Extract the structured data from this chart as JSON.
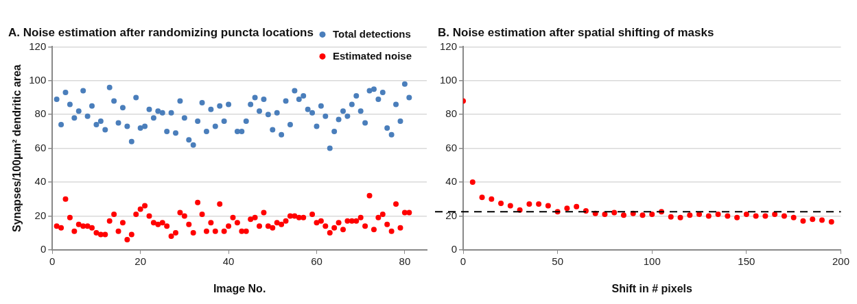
{
  "chart_data": [
    {
      "type": "scatter",
      "title": "A. Noise estimation after randomizing puncta locations",
      "xlabel": "Image No.",
      "ylabel": "Synapses/100μm² dendritic area",
      "x": [
        1,
        2,
        3,
        4,
        5,
        6,
        7,
        8,
        9,
        10,
        11,
        12,
        13,
        14,
        15,
        16,
        17,
        18,
        19,
        20,
        21,
        22,
        23,
        24,
        25,
        26,
        27,
        28,
        29,
        30,
        31,
        32,
        33,
        34,
        35,
        36,
        37,
        38,
        39,
        40,
        41,
        42,
        43,
        44,
        45,
        46,
        47,
        48,
        49,
        50,
        51,
        52,
        53,
        54,
        55,
        56,
        57,
        58,
        59,
        60,
        61,
        62,
        63,
        64,
        65,
        66,
        67,
        68,
        69,
        70,
        71,
        72,
        73,
        74,
        75,
        76,
        77,
        78,
        79,
        80,
        81
      ],
      "series": [
        {
          "name": "Total detections",
          "color": "#4a7ebb",
          "values": [
            89,
            74,
            93,
            86,
            78,
            82,
            94,
            79,
            85,
            74,
            76,
            71,
            96,
            88,
            75,
            84,
            73,
            64,
            90,
            72,
            73,
            83,
            78,
            82,
            81,
            70,
            81,
            69,
            88,
            78,
            65,
            62,
            76,
            87,
            70,
            83,
            73,
            85,
            76,
            86,
            null,
            70,
            70,
            76,
            86,
            90,
            82,
            89,
            80,
            71,
            81,
            68,
            88,
            74,
            94,
            89,
            91,
            83,
            81,
            73,
            85,
            79,
            60,
            70,
            77,
            82,
            79,
            86,
            91,
            82,
            75,
            94,
            95,
            89,
            93,
            72,
            68,
            86,
            76,
            98,
            90
          ]
        },
        {
          "name": "Estimated noise",
          "color": "#ff0000",
          "values": [
            14,
            13,
            30,
            19,
            11,
            15,
            14,
            14,
            13,
            10,
            9,
            9,
            17,
            21,
            11,
            16,
            6,
            9,
            21,
            24,
            26,
            20,
            16,
            15,
            16,
            14,
            8,
            10,
            22,
            20,
            15,
            10,
            28,
            21,
            11,
            16,
            11,
            27,
            11,
            14,
            19,
            16,
            11,
            11,
            18,
            19,
            14,
            22,
            14,
            13,
            16,
            15,
            17,
            20,
            20,
            19,
            19,
            null,
            21,
            16,
            17,
            14,
            10,
            13,
            16,
            12,
            17,
            17,
            17,
            19,
            14,
            32,
            12,
            19,
            21,
            15,
            11,
            27,
            13,
            22,
            22
          ]
        }
      ],
      "xlim": [
        0,
        85
      ],
      "xticks": [
        0,
        20,
        40,
        60,
        80
      ],
      "ylim": [
        0,
        120
      ],
      "yticks": [
        0,
        20,
        40,
        60,
        80,
        100,
        120
      ],
      "grid": "y",
      "legend": "top right",
      "marker": "circle"
    },
    {
      "type": "scatter",
      "title": "B. Noise estimation after spatial shifting of masks",
      "xlabel": "Shift in # pixels",
      "x": [
        0,
        5,
        10,
        15,
        20,
        25,
        30,
        35,
        40,
        45,
        50,
        55,
        60,
        65,
        70,
        75,
        80,
        85,
        90,
        95,
        100,
        105,
        110,
        115,
        120,
        125,
        130,
        135,
        140,
        145,
        150,
        155,
        160,
        165,
        170,
        175,
        180,
        185,
        190,
        195
      ],
      "series": [
        {
          "color": "#ff0000",
          "values": [
            88,
            40,
            31,
            30,
            27.5,
            26,
            23.5,
            27,
            27,
            26,
            22.5,
            24.5,
            25.5,
            23,
            21.5,
            21,
            22,
            20.5,
            21.5,
            20.5,
            21,
            22.5,
            19.5,
            19,
            20.5,
            21,
            20,
            21,
            20,
            19,
            21,
            20,
            20,
            21,
            20,
            19,
            17,
            18,
            17.5,
            16.5
          ]
        }
      ],
      "xlim": [
        0,
        200
      ],
      "xticks": [
        0,
        50,
        100,
        150,
        200
      ],
      "ylim": [
        0,
        120
      ],
      "yticks": [
        0,
        20,
        40,
        60,
        80,
        100,
        120
      ],
      "grid": "y",
      "marker": "circle",
      "ref_lines": [
        {
          "axis": "y",
          "value": 22.5,
          "color": "#000000",
          "line_style": "dashed"
        }
      ]
    }
  ]
}
